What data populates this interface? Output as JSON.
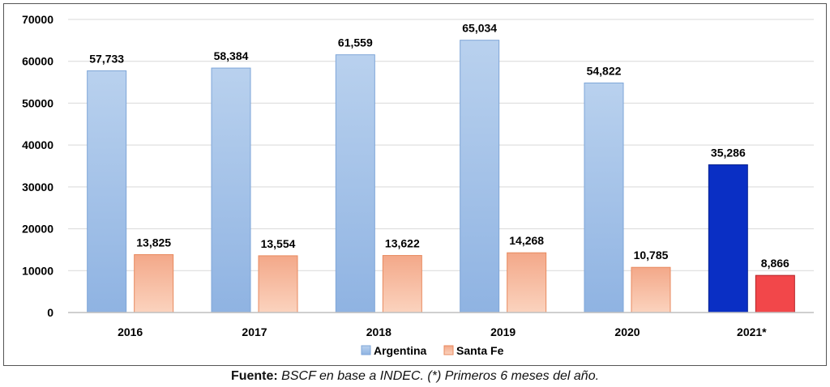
{
  "chart_data": {
    "type": "bar",
    "categories": [
      "2016",
      "2017",
      "2018",
      "2019",
      "2020",
      "2021*"
    ],
    "series": [
      {
        "name": "Argentina",
        "values": [
          57733,
          58384,
          61559,
          65034,
          54822,
          35286
        ],
        "color": "#9dbde6",
        "highlight_color": "#0a2fc4"
      },
      {
        "name": "Santa Fe",
        "values": [
          13825,
          13554,
          13622,
          14268,
          10785,
          8866
        ],
        "color": "#f7b899",
        "highlight_color": "#f2474a"
      }
    ],
    "data_labels": [
      [
        "57,733",
        "58,384",
        "61,559",
        "65,034",
        "54,822",
        "35,286"
      ],
      [
        "13,825",
        "13,554",
        "13,622",
        "14,268",
        "10,785",
        "8,866"
      ]
    ],
    "y_ticks": [
      "0",
      "10000",
      "20000",
      "30000",
      "40000",
      "50000",
      "60000",
      "70000"
    ],
    "ylim": [
      0,
      70000
    ],
    "grid": true,
    "legend_position": "bottom",
    "title": "",
    "xlabel": "",
    "ylabel": ""
  },
  "footer": {
    "source_lead": "Fuente:",
    "source_text": " BSCF en base a INDEC. (*) Primeros 6 meses del año."
  }
}
